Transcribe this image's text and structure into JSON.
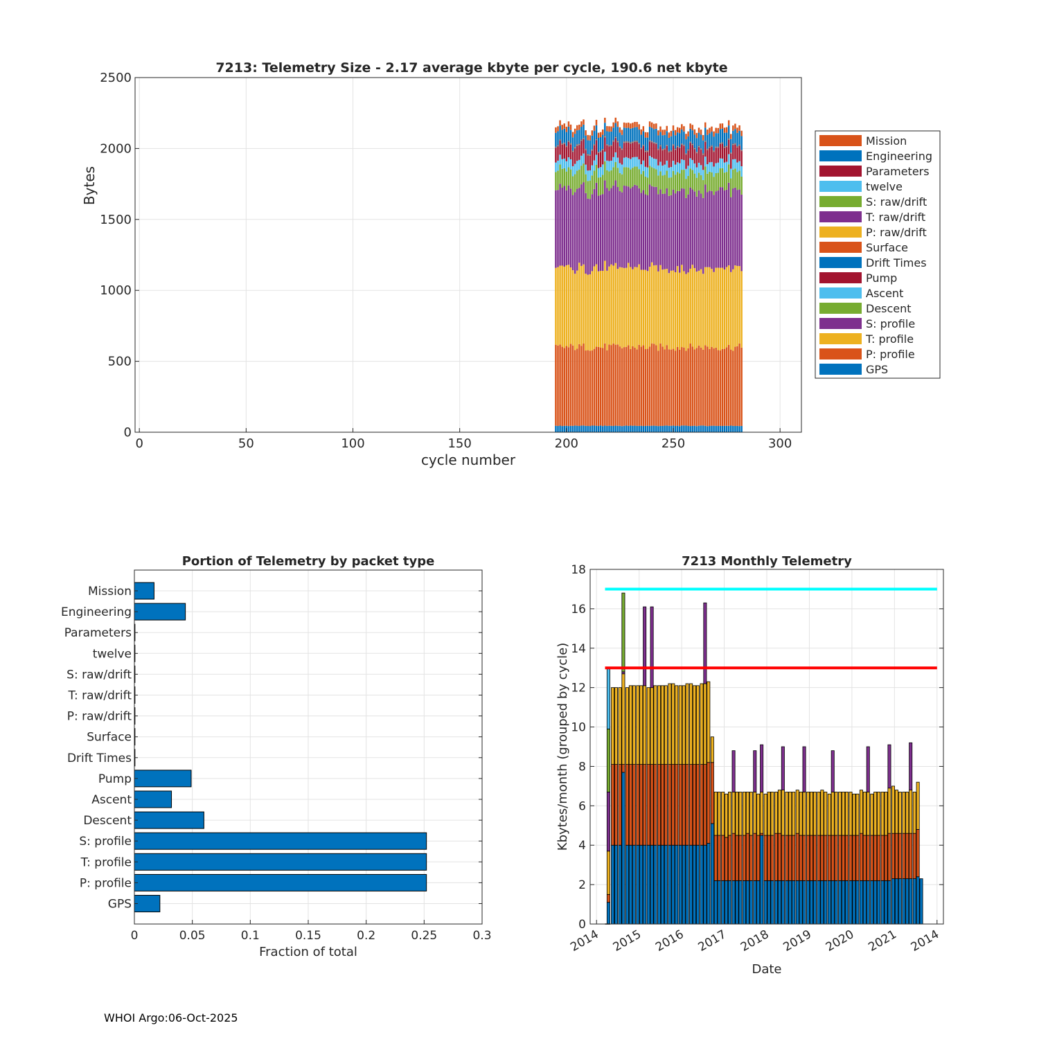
{
  "footer": "WHOI Argo:06-Oct-2025",
  "chart_data": [
    {
      "type": "bar",
      "stacked": true,
      "title": "7213: Telemetry Size - 2.17 average kbyte per cycle,  190.6 net kbyte",
      "xlabel": "cycle number",
      "ylabel": "Bytes",
      "xlim": [
        -2,
        310
      ],
      "ylim": [
        0,
        2500
      ],
      "xticks": [
        0,
        50,
        100,
        150,
        200,
        250,
        300
      ],
      "yticks": [
        0,
        500,
        1000,
        1500,
        2000,
        2500
      ],
      "grid": true,
      "legend_position": "right",
      "cycle_start": 195,
      "cycle_end": 282,
      "series": [
        {
          "name": "GPS",
          "color": "#0072BD",
          "typical_bytes": 45
        },
        {
          "name": "P: profile",
          "color": "#D95319",
          "typical_bytes": 555
        },
        {
          "name": "T: profile",
          "color": "#EDB120",
          "typical_bytes": 555
        },
        {
          "name": "S: profile",
          "color": "#7E2F8E",
          "typical_bytes": 555
        },
        {
          "name": "Descent",
          "color": "#77AC30",
          "typical_bytes": 130
        },
        {
          "name": "Ascent",
          "color": "#4DBEEE",
          "typical_bytes": 70
        },
        {
          "name": "Pump",
          "color": "#A2142F",
          "typical_bytes": 105
        },
        {
          "name": "Drift Times",
          "color": "#0072BD",
          "typical_bytes": 2
        },
        {
          "name": "Surface",
          "color": "#D95319",
          "typical_bytes": 2
        },
        {
          "name": "P: raw/drift",
          "color": "#EDB120",
          "typical_bytes": 1
        },
        {
          "name": "T: raw/drift",
          "color": "#7E2F8E",
          "typical_bytes": 1
        },
        {
          "name": "S: raw/drift",
          "color": "#77AC30",
          "typical_bytes": 1
        },
        {
          "name": "twelve",
          "color": "#4DBEEE",
          "typical_bytes": 1
        },
        {
          "name": "Parameters",
          "color": "#A2142F",
          "typical_bytes": 1
        },
        {
          "name": "Engineering",
          "color": "#0072BD",
          "typical_bytes": 95
        },
        {
          "name": "Mission",
          "color": "#D95319",
          "typical_bytes": 37
        }
      ],
      "legend": [
        "Mission",
        "Engineering",
        "Parameters",
        "twelve",
        "S: raw/drift",
        "T: raw/drift",
        "P: raw/drift",
        "Surface",
        "Drift Times",
        "Pump",
        "Ascent",
        "Descent",
        "S: profile",
        "T: profile",
        "P: profile",
        "GPS"
      ]
    },
    {
      "type": "bar",
      "orientation": "horizontal",
      "title": "Portion of Telemetry by packet type",
      "xlabel": "Fraction of total",
      "ylabel": "",
      "xlim": [
        0,
        0.3
      ],
      "xticks": [
        0,
        0.05,
        0.1,
        0.15,
        0.2,
        0.25,
        0.3
      ],
      "xticklabels": [
        "0",
        "0.05",
        "0.1",
        "0.15",
        "0.2",
        "0.25",
        "0.3"
      ],
      "grid": true,
      "bar_color": "#0072BD",
      "categories": [
        "Mission",
        "Engineering",
        "Parameters",
        "twelve",
        "S: raw/drift",
        "T: raw/drift",
        "P: raw/drift",
        "Surface",
        "Drift Times",
        "Pump",
        "Ascent",
        "Descent",
        "S: profile",
        "T: profile",
        "P: profile",
        "GPS"
      ],
      "values": [
        0.017,
        0.044,
        0.0005,
        0.0005,
        0.0005,
        0.0005,
        0.0005,
        0.0005,
        0.0005,
        0.049,
        0.032,
        0.06,
        0.252,
        0.252,
        0.252,
        0.022
      ]
    },
    {
      "type": "bar",
      "stacked": true,
      "title": "7213 Monthly Telemetry",
      "xlabel": "Date",
      "ylabel": "Kbytes/month (grouped by cycle)",
      "xlim": [
        -0.15,
        8.15
      ],
      "ylim": [
        0,
        18
      ],
      "yticks": [
        0,
        2,
        4,
        6,
        8,
        10,
        12,
        14,
        16,
        18
      ],
      "xtick_positions": [
        0,
        1,
        2,
        3,
        4,
        5,
        6,
        7,
        8
      ],
      "xticklabels": [
        "2014",
        "2015",
        "2016",
        "2017",
        "2018",
        "2019",
        "2020",
        "2021",
        "2014"
      ],
      "grid": true,
      "reference_lines": [
        {
          "value": 17,
          "color": "#00FFFF"
        },
        {
          "value": 13,
          "color": "#FF0000"
        }
      ],
      "segment_colors": [
        "#0072BD",
        "#D95319",
        "#EDB120",
        "#7E2F8E",
        "#77AC30",
        "#4DBEEE"
      ],
      "bars": [
        {
          "x": 0.28,
          "segments": [
            1.1,
            0.4,
            2.2,
            3.0,
            3.2,
            3.1
          ]
        },
        {
          "x": 0.38,
          "segments": [
            4.0,
            4.1,
            3.9
          ]
        },
        {
          "x": 0.46,
          "segments": [
            4.0,
            4.1,
            3.9
          ]
        },
        {
          "x": 0.55,
          "segments": [
            4.0,
            4.1,
            3.9
          ]
        },
        {
          "x": 0.63,
          "segments": [
            7.7,
            0.4,
            4.6,
            0.1,
            4.0
          ]
        },
        {
          "x": 0.72,
          "segments": [
            4.0,
            4.1,
            3.9
          ]
        },
        {
          "x": 0.8,
          "segments": [
            4.0,
            4.1,
            4.0
          ]
        },
        {
          "x": 0.88,
          "segments": [
            4.0,
            4.1,
            4.0
          ]
        },
        {
          "x": 0.97,
          "segments": [
            4.0,
            4.1,
            4.0
          ]
        },
        {
          "x": 1.05,
          "segments": [
            4.0,
            4.1,
            4.0
          ]
        },
        {
          "x": 1.13,
          "segments": [
            4.0,
            4.1,
            4.0,
            4.0
          ]
        },
        {
          "x": 1.22,
          "segments": [
            4.0,
            4.1,
            3.9
          ]
        },
        {
          "x": 1.3,
          "segments": [
            4.0,
            4.1,
            3.9,
            4.1
          ]
        },
        {
          "x": 1.38,
          "segments": [
            4.0,
            4.1,
            4.0
          ]
        },
        {
          "x": 1.47,
          "segments": [
            4.0,
            4.1,
            4.0
          ]
        },
        {
          "x": 1.55,
          "segments": [
            4.0,
            4.1,
            4.0
          ]
        },
        {
          "x": 1.63,
          "segments": [
            4.0,
            4.1,
            4.0
          ]
        },
        {
          "x": 1.72,
          "segments": [
            4.0,
            4.1,
            4.1
          ]
        },
        {
          "x": 1.8,
          "segments": [
            4.0,
            4.1,
            4.1
          ]
        },
        {
          "x": 1.88,
          "segments": [
            4.0,
            4.1,
            4.0
          ]
        },
        {
          "x": 1.97,
          "segments": [
            4.0,
            4.1,
            4.0
          ]
        },
        {
          "x": 2.05,
          "segments": [
            4.0,
            4.1,
            4.0
          ]
        },
        {
          "x": 2.13,
          "segments": [
            4.0,
            4.1,
            4.1
          ]
        },
        {
          "x": 2.22,
          "segments": [
            4.0,
            4.1,
            4.1
          ]
        },
        {
          "x": 2.3,
          "segments": [
            4.0,
            4.1,
            4.0
          ]
        },
        {
          "x": 2.38,
          "segments": [
            4.0,
            4.1,
            4.0
          ]
        },
        {
          "x": 2.47,
          "segments": [
            4.0,
            4.1,
            4.1
          ]
        },
        {
          "x": 2.55,
          "segments": [
            4.0,
            4.1,
            4.1,
            4.1
          ]
        },
        {
          "x": 2.63,
          "segments": [
            4.1,
            4.1,
            4.1
          ]
        },
        {
          "x": 2.72,
          "segments": [
            5.1,
            3.1,
            1.3
          ]
        },
        {
          "x": 2.8,
          "segments": [
            2.2,
            2.3,
            2.2
          ]
        },
        {
          "x": 2.88,
          "segments": [
            2.2,
            2.3,
            2.2
          ]
        },
        {
          "x": 2.97,
          "segments": [
            2.2,
            2.3,
            2.2
          ]
        },
        {
          "x": 3.05,
          "segments": [
            2.2,
            2.2,
            2.2
          ]
        },
        {
          "x": 3.13,
          "segments": [
            2.2,
            2.3,
            2.2
          ]
        },
        {
          "x": 3.22,
          "segments": [
            2.2,
            2.4,
            2.1,
            2.1
          ]
        },
        {
          "x": 3.3,
          "segments": [
            2.2,
            2.3,
            2.2
          ]
        },
        {
          "x": 3.38,
          "segments": [
            2.2,
            2.3,
            2.2
          ]
        },
        {
          "x": 3.47,
          "segments": [
            2.2,
            2.3,
            2.2
          ]
        },
        {
          "x": 3.55,
          "segments": [
            2.2,
            2.4,
            2.1
          ]
        },
        {
          "x": 3.63,
          "segments": [
            2.2,
            2.3,
            2.2
          ]
        },
        {
          "x": 3.72,
          "segments": [
            2.2,
            2.4,
            2.1,
            2.1
          ]
        },
        {
          "x": 3.8,
          "segments": [
            2.2,
            2.3,
            2.1
          ]
        },
        {
          "x": 3.88,
          "segments": [
            4.5,
            0.1,
            2.1,
            2.4
          ]
        },
        {
          "x": 3.97,
          "segments": [
            2.2,
            2.3,
            2.1
          ]
        },
        {
          "x": 4.05,
          "segments": [
            2.2,
            2.3,
            2.2
          ]
        },
        {
          "x": 4.13,
          "segments": [
            2.2,
            2.3,
            2.2
          ]
        },
        {
          "x": 4.22,
          "segments": [
            2.2,
            2.4,
            2.1
          ]
        },
        {
          "x": 4.3,
          "segments": [
            2.2,
            2.4,
            2.2
          ]
        },
        {
          "x": 4.38,
          "segments": [
            2.2,
            2.3,
            2.3,
            2.2
          ]
        },
        {
          "x": 4.47,
          "segments": [
            2.2,
            2.3,
            2.2
          ]
        },
        {
          "x": 4.55,
          "segments": [
            2.2,
            2.3,
            2.2
          ]
        },
        {
          "x": 4.63,
          "segments": [
            2.2,
            2.3,
            2.2
          ]
        },
        {
          "x": 4.72,
          "segments": [
            2.2,
            2.4,
            2.2
          ]
        },
        {
          "x": 4.8,
          "segments": [
            2.2,
            2.3,
            2.2
          ]
        },
        {
          "x": 4.88,
          "segments": [
            2.2,
            2.3,
            2.2,
            2.3
          ]
        },
        {
          "x": 4.97,
          "segments": [
            2.2,
            2.3,
            2.2
          ]
        },
        {
          "x": 5.05,
          "segments": [
            2.2,
            2.3,
            2.2
          ]
        },
        {
          "x": 5.13,
          "segments": [
            2.2,
            2.3,
            2.2
          ]
        },
        {
          "x": 5.22,
          "segments": [
            2.2,
            2.3,
            2.2
          ]
        },
        {
          "x": 5.3,
          "segments": [
            2.2,
            2.3,
            2.3
          ]
        },
        {
          "x": 5.38,
          "segments": [
            2.2,
            2.3,
            2.2
          ]
        },
        {
          "x": 5.47,
          "segments": [
            2.2,
            2.3,
            2.1
          ]
        },
        {
          "x": 5.55,
          "segments": [
            2.2,
            2.3,
            2.2,
            2.1
          ]
        },
        {
          "x": 5.63,
          "segments": [
            2.2,
            2.3,
            2.2
          ]
        },
        {
          "x": 5.72,
          "segments": [
            2.2,
            2.3,
            2.2
          ]
        },
        {
          "x": 5.8,
          "segments": [
            2.2,
            2.3,
            2.2
          ]
        },
        {
          "x": 5.88,
          "segments": [
            2.2,
            2.3,
            2.2
          ]
        },
        {
          "x": 5.97,
          "segments": [
            2.2,
            2.3,
            2.2
          ]
        },
        {
          "x": 6.05,
          "segments": [
            2.2,
            2.3,
            2.1
          ]
        },
        {
          "x": 6.13,
          "segments": [
            2.2,
            2.3,
            2.1
          ]
        },
        {
          "x": 6.22,
          "segments": [
            2.2,
            2.4,
            2.2
          ]
        },
        {
          "x": 6.3,
          "segments": [
            2.2,
            2.3,
            2.2
          ]
        },
        {
          "x": 6.38,
          "segments": [
            2.2,
            2.3,
            2.2,
            2.3
          ]
        },
        {
          "x": 6.47,
          "segments": [
            2.2,
            2.3,
            2.1
          ]
        },
        {
          "x": 6.55,
          "segments": [
            2.2,
            2.3,
            2.2
          ]
        },
        {
          "x": 6.63,
          "segments": [
            2.2,
            2.3,
            2.2
          ]
        },
        {
          "x": 6.72,
          "segments": [
            2.2,
            2.3,
            2.2
          ]
        },
        {
          "x": 6.8,
          "segments": [
            2.2,
            2.3,
            2.2
          ]
        },
        {
          "x": 6.88,
          "segments": [
            2.2,
            2.4,
            2.3,
            2.2
          ]
        },
        {
          "x": 6.97,
          "segments": [
            2.3,
            2.3,
            2.4
          ]
        },
        {
          "x": 7.05,
          "segments": [
            2.3,
            2.3,
            2.2
          ]
        },
        {
          "x": 7.13,
          "segments": [
            2.3,
            2.3,
            2.1
          ]
        },
        {
          "x": 7.22,
          "segments": [
            2.3,
            2.3,
            2.1
          ]
        },
        {
          "x": 7.3,
          "segments": [
            2.3,
            2.3,
            2.1
          ]
        },
        {
          "x": 7.38,
          "segments": [
            2.3,
            2.3,
            2.2,
            2.4
          ]
        },
        {
          "x": 7.47,
          "segments": [
            2.3,
            2.3,
            2.1
          ]
        },
        {
          "x": 7.55,
          "segments": [
            2.4,
            2.4,
            2.4
          ]
        },
        {
          "x": 7.63,
          "segments": [
            2.3
          ]
        }
      ]
    }
  ]
}
